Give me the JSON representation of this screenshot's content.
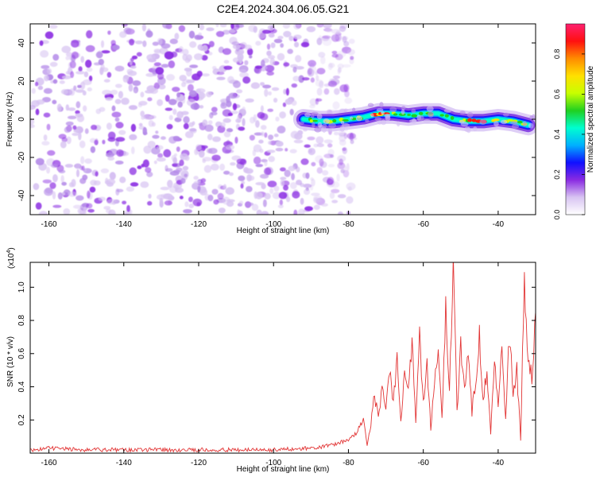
{
  "title": "C2E4.2024.304.06.05.G21",
  "colors": {
    "line": "#e23434",
    "frame": "#000000",
    "noise_light": "#d8c4f2",
    "noise_mid": "#b48ae8",
    "noise_dark": "#8a2be2"
  },
  "chart_data": [
    {
      "type": "heatmap",
      "title": "",
      "xlabel": "Height of straight line (km)",
      "ylabel": "Frequency (Hz)",
      "xlim": [
        -165,
        -30
      ],
      "ylim": [
        -50,
        50
      ],
      "x_ticks": [
        -160,
        -140,
        -120,
        -100,
        -80,
        -60,
        -40
      ],
      "x_tick_labels": [
        "-160",
        "-140",
        "-120",
        "-100",
        "-80",
        "-60",
        "-40"
      ],
      "y_ticks": [
        -40,
        -20,
        0,
        20,
        40
      ],
      "y_tick_labels": [
        "-40",
        "-20",
        "0",
        "20",
        "40"
      ],
      "noise_region_x": [
        -165,
        -82
      ],
      "signal_track": {
        "x": [
          -92,
          -88,
          -84,
          -80,
          -76,
          -72,
          -68,
          -64,
          -60,
          -56,
          -52,
          -48,
          -44,
          -40,
          -36,
          -32
        ],
        "frequency": [
          0,
          -1,
          -1,
          0,
          1,
          3,
          3,
          2,
          3,
          3,
          0,
          -1,
          -1,
          0,
          -1,
          -3
        ],
        "amplitude": [
          0.25,
          0.3,
          0.4,
          0.55,
          0.75,
          0.8,
          0.7,
          0.65,
          0.7,
          0.55,
          0.6,
          0.75,
          0.85,
          0.6,
          0.55,
          0.7
        ]
      },
      "colorbar": {
        "label": "Normalized spectral amplitude",
        "range": [
          0.0,
          0.95
        ],
        "ticks": [
          0.0,
          0.2,
          0.4,
          0.6,
          0.8
        ],
        "tick_labels": [
          "0.0",
          "0.2",
          "0.4",
          "0.6",
          "0.8"
        ],
        "colors": [
          "#ffffff",
          "#d8c4f2",
          "#8a2be2",
          "#1010ff",
          "#00b0ff",
          "#00ffd0",
          "#20d020",
          "#c8ff00",
          "#ffe000",
          "#ff8c00",
          "#ff1010",
          "#ff2070"
        ]
      }
    },
    {
      "type": "line",
      "title": "",
      "xlabel": "Height of straight line (km)",
      "ylabel": "SNR (10 * v/v)",
      "y_multiplier": "(x10",
      "y_multiplier_exp": "4",
      "y_multiplier_close": ")",
      "xlim": [
        -165,
        -30
      ],
      "ylim": [
        0,
        1.15
      ],
      "x_ticks": [
        -160,
        -140,
        -120,
        -100,
        -80,
        -60,
        -40
      ],
      "x_tick_labels": [
        "-160",
        "-140",
        "-120",
        "-100",
        "-80",
        "-60",
        "-40"
      ],
      "y_ticks": [
        0.2,
        0.4,
        0.6,
        0.8,
        1.0
      ],
      "y_tick_labels": [
        "0.2",
        "0.4",
        "0.6",
        "0.8",
        "1.0"
      ],
      "series": [
        {
          "x": [
            -165,
            -160,
            -150,
            -140,
            -130,
            -120,
            -110,
            -100,
            -90,
            -84,
            -80,
            -78,
            -76,
            -75,
            -74,
            -73,
            -72,
            -71,
            -70,
            -69,
            -68,
            -67,
            -66,
            -65,
            -64,
            -63,
            -62,
            -61,
            -60,
            -59,
            -58,
            -57,
            -56,
            -55,
            -54,
            -53,
            -52,
            -51,
            -50,
            -49,
            -48,
            -47,
            -46,
            -45,
            -44,
            -43,
            -42,
            -41,
            -40,
            -39,
            -38,
            -37,
            -36,
            -35,
            -34,
            -33,
            -32,
            -31,
            -30
          ],
          "values": [
            0.02,
            0.03,
            0.02,
            0.02,
            0.02,
            0.02,
            0.02,
            0.02,
            0.03,
            0.05,
            0.08,
            0.12,
            0.2,
            0.05,
            0.18,
            0.35,
            0.2,
            0.42,
            0.25,
            0.5,
            0.3,
            0.55,
            0.2,
            0.48,
            0.35,
            0.68,
            0.2,
            0.72,
            0.3,
            0.55,
            0.15,
            0.45,
            0.62,
            0.2,
            0.85,
            0.35,
            1.15,
            0.25,
            0.65,
            0.4,
            0.6,
            0.25,
            0.45,
            0.7,
            0.3,
            0.52,
            0.12,
            0.55,
            0.3,
            0.65,
            0.2,
            0.72,
            0.35,
            0.5,
            0.08,
            1.05,
            0.6,
            0.45,
            0.85
          ]
        }
      ]
    }
  ]
}
